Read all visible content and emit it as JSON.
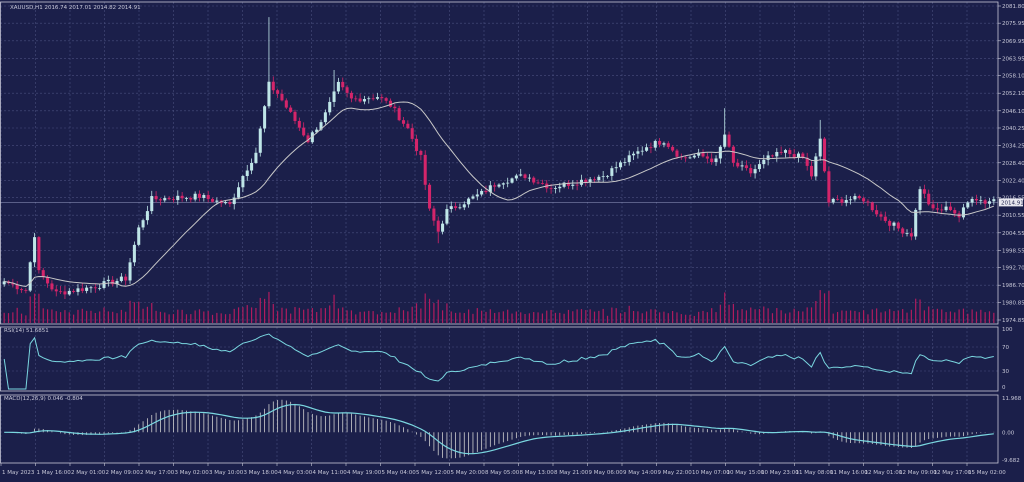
{
  "header": {
    "main_label": "XAUUSD,H1  2016.74 2017.01 2014.82 2014.91",
    "rsi_label": "RSI(14) 51.6851",
    "macd_label": "MACD(12,26,9) 0.046 -0.804"
  },
  "colors": {
    "background": "#1b1f4a",
    "grid": "#4a4f7e",
    "bull": "#bfe6e8",
    "bear": "#d4256a",
    "ma": "#c9c9c9",
    "volume": "#b01c5e",
    "rsi_line": "#7ad7e0",
    "macd_line": "#7ad7e0",
    "macd_hist": "#cfcfcf",
    "text": "#c8c8d8"
  },
  "chart_data": [
    {
      "type": "candlestick",
      "symbol": "XAUUSD",
      "timeframe": "H1",
      "price_ticks": [
        "2081.80",
        "2075.95",
        "2069.95",
        "2063.95",
        "2058.10",
        "2052.10",
        "2046.10",
        "2040.25",
        "2034.25",
        "2028.40",
        "2022.40",
        "2016.55",
        "2010.55",
        "2004.55",
        "1998.55",
        "1992.70",
        "1986.70",
        "1980.85",
        "1974.85"
      ],
      "current_price": "2014.91",
      "ylim": [
        1974.85,
        2081.8
      ],
      "time_labels": [
        "1 May 2023",
        "1 May 16:00",
        "2 May 01:00",
        "2 May 09:00",
        "2 May 17:00",
        "3 May 02:00",
        "3 May 10:00",
        "3 May 18:00",
        "4 May 03:00",
        "4 May 11:00",
        "4 May 19:00",
        "5 May 04:00",
        "5 May 12:00",
        "5 May 20:00",
        "8 May 05:00",
        "8 May 13:00",
        "8 May 21:00",
        "9 May 06:00",
        "9 May 14:00",
        "9 May 22:00",
        "10 May 07:00",
        "10 May 15:00",
        "10 May 23:00",
        "11 May 08:00",
        "11 May 16:00",
        "12 May 01:00",
        "12 May 09:00",
        "12 May 17:00",
        "15 May 02:00"
      ],
      "anchors": [
        {
          "t": 0,
          "c": 1988
        },
        {
          "t": 5,
          "c": 1985
        },
        {
          "t": 7,
          "c": 2004
        },
        {
          "t": 8,
          "c": 1991
        },
        {
          "t": 12,
          "c": 1984
        },
        {
          "t": 20,
          "c": 1986
        },
        {
          "t": 28,
          "c": 1989
        },
        {
          "t": 31,
          "c": 2006
        },
        {
          "t": 34,
          "c": 2016
        },
        {
          "t": 45,
          "c": 2017
        },
        {
          "t": 52,
          "c": 2014
        },
        {
          "t": 55,
          "c": 2024
        },
        {
          "t": 58,
          "c": 2032
        },
        {
          "t": 61,
          "c": 2055
        },
        {
          "t": 63,
          "c": 2052
        },
        {
          "t": 66,
          "c": 2045
        },
        {
          "t": 70,
          "c": 2036
        },
        {
          "t": 74,
          "c": 2045
        },
        {
          "t": 77,
          "c": 2055
        },
        {
          "t": 80,
          "c": 2050
        },
        {
          "t": 86,
          "c": 2051
        },
        {
          "t": 89,
          "c": 2048
        },
        {
          "t": 93,
          "c": 2040
        },
        {
          "t": 96,
          "c": 2030
        },
        {
          "t": 98,
          "c": 2012
        },
        {
          "t": 100,
          "c": 2005
        },
        {
          "t": 102,
          "c": 2012
        },
        {
          "t": 106,
          "c": 2015
        },
        {
          "t": 110,
          "c": 2018
        },
        {
          "t": 114,
          "c": 2022
        },
        {
          "t": 120,
          "c": 2024
        },
        {
          "t": 126,
          "c": 2020
        },
        {
          "t": 132,
          "c": 2022
        },
        {
          "t": 138,
          "c": 2024
        },
        {
          "t": 144,
          "c": 2030
        },
        {
          "t": 148,
          "c": 2034
        },
        {
          "t": 152,
          "c": 2036
        },
        {
          "t": 156,
          "c": 2030
        },
        {
          "t": 160,
          "c": 2031
        },
        {
          "t": 164,
          "c": 2029
        },
        {
          "t": 166,
          "c": 2038
        },
        {
          "t": 168,
          "c": 2028
        },
        {
          "t": 172,
          "c": 2025
        },
        {
          "t": 176,
          "c": 2030
        },
        {
          "t": 180,
          "c": 2032
        },
        {
          "t": 184,
          "c": 2030
        },
        {
          "t": 186,
          "c": 2024
        },
        {
          "t": 188,
          "c": 2036
        },
        {
          "t": 190,
          "c": 2015
        },
        {
          "t": 194,
          "c": 2016
        },
        {
          "t": 198,
          "c": 2016
        },
        {
          "t": 202,
          "c": 2010
        },
        {
          "t": 206,
          "c": 2006
        },
        {
          "t": 209,
          "c": 2004
        },
        {
          "t": 211,
          "c": 2020
        },
        {
          "t": 214,
          "c": 2012
        },
        {
          "t": 218,
          "c": 2013
        },
        {
          "t": 220,
          "c": 2010
        },
        {
          "t": 223,
          "c": 2017
        },
        {
          "t": 226,
          "c": 2015
        },
        {
          "t": 228,
          "c": 2016
        }
      ],
      "spikes": [
        {
          "t": 61,
          "h": 2078
        },
        {
          "t": 76,
          "h": 2060
        },
        {
          "t": 100,
          "l": 2001
        },
        {
          "t": 166,
          "h": 2047
        },
        {
          "t": 188,
          "h": 2043
        },
        {
          "t": 209,
          "l": 2002
        }
      ],
      "ma_period": 20
    },
    {
      "type": "line",
      "name": "RSI(14)",
      "value": "51.6851",
      "ticks": [
        "100",
        "70",
        "30",
        "0"
      ],
      "ylim": [
        0,
        100
      ]
    },
    {
      "type": "line",
      "name": "MACD(12,26,9)",
      "values": [
        "0.046",
        "-0.804"
      ],
      "ticks": [
        "11.968",
        "0.00",
        "-9.682"
      ],
      "ylim": [
        -9.682,
        11.968
      ]
    }
  ]
}
